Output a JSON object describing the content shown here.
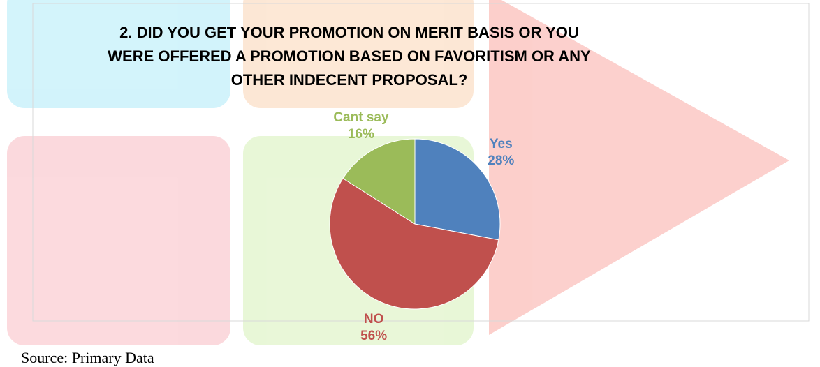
{
  "chart_data": {
    "type": "pie",
    "title": "2. DID YOU GET YOUR PROMOTION ON MERIT BASIS OR YOU WERE OFFERED A PROMOTION BASED ON FAVORITISM OR ANY OTHER INDECENT PROPOSAL?",
    "categories": [
      "Yes",
      "NO",
      "Cant say"
    ],
    "values": [
      28,
      56,
      16
    ],
    "value_labels": [
      "28%",
      "56%",
      "16%"
    ],
    "colors": [
      "#4f81bd",
      "#c0504d",
      "#9bbb59"
    ]
  },
  "source": "Source: Primary Data"
}
